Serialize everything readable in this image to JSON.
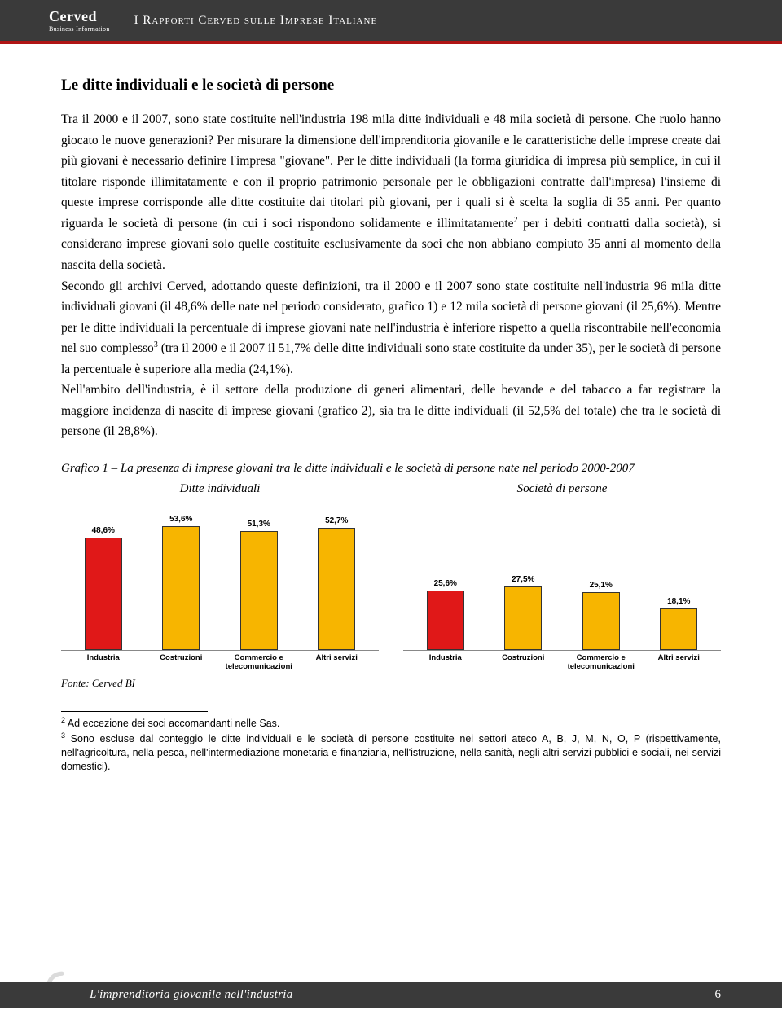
{
  "header": {
    "logo_main": "Cerved",
    "logo_sub": "Business Information",
    "title": "I Rapporti Cerved sulle Imprese Italiane"
  },
  "section_title": "Le ditte individuali e le società di persone",
  "body_p1": "Tra il 2000 e il 2007, sono state costituite nell'industria 198 mila ditte individuali e 48 mila società di persone. Che ruolo hanno giocato le nuove generazioni? Per misurare la dimensione dell'imprenditoria giovanile e le caratteristiche delle imprese create dai più giovani è necessario definire l'impresa \"giovane\". Per le ditte individuali (la forma giuridica di impresa più semplice, in cui il titolare risponde illimitatamente e con il proprio patrimonio personale per le obbligazioni contratte dall'impresa) l'insieme di queste imprese corrisponde alle ditte costituite dai titolari più giovani, per i quali si è scelta la soglia di 35 anni. Per quanto riguarda le società di persone (in cui i soci rispondono solidamente e illimitatamente",
  "body_p1_sup": "2",
  "body_p1b": " per i debiti contratti dalla società), si considerano imprese giovani solo quelle costituite esclusivamente da soci che non abbiano compiuto 35 anni al momento della nascita della società.",
  "body_p2a": "Secondo gli archivi Cerved, adottando queste definizioni, tra il 2000 e il 2007 sono state costituite nell'industria 96 mila ditte individuali giovani (il 48,6% delle nate nel periodo considerato, grafico 1) e 12 mila società di persone giovani (il 25,6%). Mentre per le ditte individuali la percentuale di imprese giovani nate nell'industria è inferiore rispetto a quella riscontrabile nell'economia nel suo complesso",
  "body_p2_sup": "3",
  "body_p2b": " (tra il 2000 e il 2007 il 51,7% delle ditte individuali sono state costituite da under 35), per le società di persone la percentuale è superiore alla media (24,1%).",
  "body_p3": "Nell'ambito dell'industria, è il settore della produzione di generi alimentari, delle bevande e del tabacco a far registrare la maggiore incidenza di nascite di imprese giovani (grafico 2), sia tra le ditte individuali (il 52,5% del totale) che tra le società di persone (il 28,8%).",
  "chart": {
    "caption": "Grafico 1 – La presenza di imprese giovani tra le ditte individuali e le società di persone nate nel periodo 2000-2007",
    "left_title": "Ditte individuali",
    "right_title": "Società di persone",
    "categories": [
      "Industria",
      "Costruzioni",
      "Commercio e telecomunicazioni",
      "Altri servizi"
    ],
    "left": {
      "values": [
        48.6,
        53.6,
        51.3,
        52.7
      ],
      "labels": [
        "48,6%",
        "53,6%",
        "51,3%",
        "52,7%"
      ],
      "colors": [
        "#e01818",
        "#f7b500",
        "#f7b500",
        "#f7b500"
      ]
    },
    "right": {
      "values": [
        25.6,
        27.5,
        25.1,
        18.1
      ],
      "labels": [
        "25,6%",
        "27,5%",
        "25,1%",
        "18,1%"
      ],
      "colors": [
        "#e01818",
        "#f7b500",
        "#f7b500",
        "#f7b500"
      ]
    },
    "ymax": 58,
    "bar_area_height": 165
  },
  "source": "Fonte: Cerved BI",
  "footnotes": {
    "n2": " Ad eccezione dei soci accomandanti nelle Sas.",
    "n3": " Sono escluse dal conteggio le ditte individuali e le società di persone costituite nei settori ateco A, B, J, M, N, O, P (rispettivamente, nell'agricoltura, nella pesca, nell'intermediazione monetaria e finanziaria, nell'istruzione, nella sanità, negli altri servizi pubblici e sociali, nei servizi domestici)."
  },
  "footer": {
    "text": "L'imprenditoria giovanile nell'industria",
    "page": "6"
  }
}
